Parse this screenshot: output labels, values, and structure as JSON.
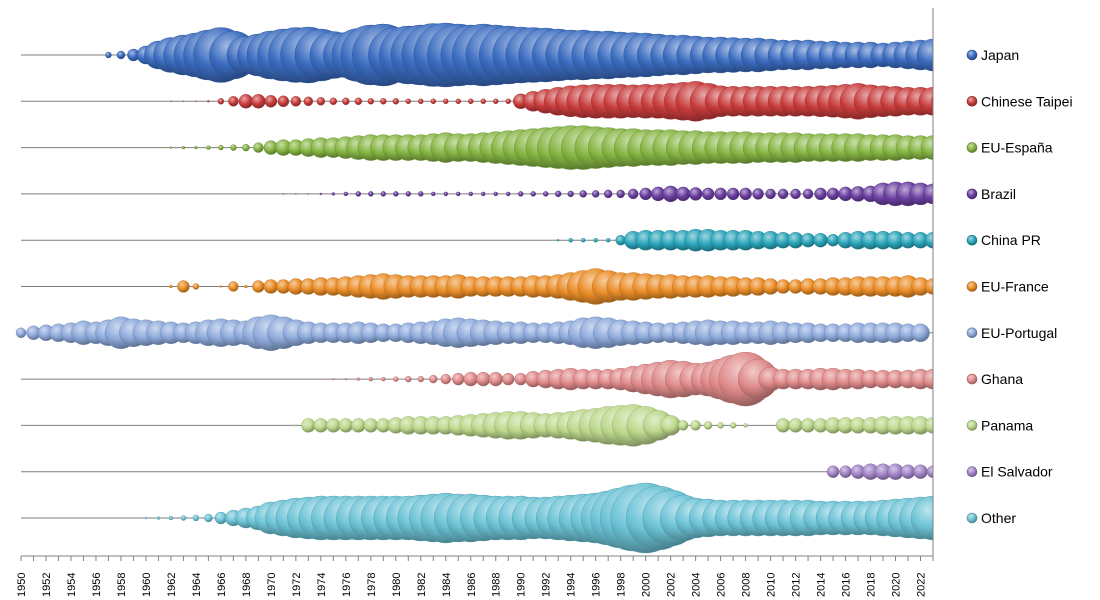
{
  "chart_data": {
    "type": "bubble-timeline",
    "title": "",
    "xlabel": "",
    "ylabel": "",
    "x_range": [
      1950,
      2023
    ],
    "x_tick_labels": [
      "1950",
      "1952",
      "1954",
      "1956",
      "1958",
      "1960",
      "1962",
      "1964",
      "1966",
      "1968",
      "1970",
      "1972",
      "1974",
      "1976",
      "1978",
      "1980",
      "1982",
      "1984",
      "1986",
      "1988",
      "1990",
      "1992",
      "1994",
      "1996",
      "1998",
      "2000",
      "2002",
      "2004",
      "2006",
      "2008",
      "2010",
      "2012",
      "2014",
      "2016",
      "2018",
      "2020",
      "2022"
    ],
    "legend_position": "right",
    "grid": false,
    "series": [
      {
        "name": "Japan",
        "color": "#3b6cc0",
        "start": 1957,
        "values": [
          6,
          8,
          12,
          18,
          28,
          35,
          40,
          44,
          50,
          55,
          48,
          38,
          42,
          48,
          52,
          55,
          56,
          52,
          47,
          45,
          53,
          60,
          62,
          55,
          58,
          60,
          63,
          64,
          62,
          60,
          62,
          60,
          58,
          56,
          55,
          54,
          52,
          50,
          50,
          48,
          48,
          46,
          45,
          44,
          42,
          40,
          40,
          38,
          36,
          36,
          35,
          34,
          34,
          32,
          30,
          30,
          30,
          28,
          28,
          26,
          26,
          26,
          24,
          26,
          28,
          30,
          32
        ]
      },
      {
        "name": "Chinese Taipei",
        "color": "#c83c3c",
        "start": 1962,
        "values": [
          1,
          1,
          1,
          2,
          6,
          10,
          14,
          14,
          12,
          11,
          10,
          9,
          8,
          7,
          7,
          7,
          6,
          6,
          6,
          5,
          5,
          5,
          5,
          5,
          5,
          5,
          5,
          5,
          15,
          20,
          24,
          28,
          31,
          33,
          34,
          34,
          34,
          33,
          34,
          34,
          36,
          38,
          40,
          36,
          31,
          30,
          30,
          30,
          30,
          30,
          30,
          30,
          31,
          32,
          34,
          36,
          33,
          31,
          30,
          28,
          28,
          28,
          28
        ]
      },
      {
        "name": "EU-España",
        "color": "#86b543",
        "start": 1962,
        "values": [
          2,
          3,
          3,
          4,
          5,
          6,
          7,
          10,
          14,
          16,
          16,
          18,
          20,
          20,
          22,
          24,
          26,
          26,
          26,
          26,
          26,
          28,
          30,
          28,
          28,
          30,
          32,
          34,
          36,
          38,
          40,
          42,
          44,
          44,
          42,
          40,
          38,
          38,
          36,
          36,
          36,
          34,
          34,
          32,
          32,
          32,
          32,
          30,
          30,
          30,
          30,
          28,
          28,
          28,
          28,
          28,
          26,
          26,
          26,
          24,
          24,
          24
        ]
      },
      {
        "name": "Brazil",
        "color": "#6b3fa0",
        "start": 1971,
        "values": [
          1,
          1,
          1,
          2,
          3,
          4,
          5,
          5,
          5,
          5,
          5,
          5,
          4,
          4,
          4,
          4,
          4,
          4,
          4,
          5,
          5,
          5,
          6,
          6,
          7,
          7,
          8,
          8,
          10,
          12,
          14,
          16,
          14,
          13,
          12,
          12,
          12,
          12,
          11,
          10,
          10,
          10,
          10,
          12,
          12,
          14,
          15,
          16,
          22,
          24,
          24,
          22,
          20,
          20,
          22,
          24
        ]
      },
      {
        "name": "China PR",
        "color": "#2aa4b9",
        "start": 1993,
        "values": [
          2,
          4,
          4,
          4,
          4,
          10,
          18,
          20,
          20,
          20,
          20,
          22,
          22,
          20,
          20,
          20,
          18,
          18,
          16,
          16,
          14,
          14,
          12,
          16,
          18,
          18,
          18,
          18,
          16,
          16,
          16,
          12,
          14,
          18
        ]
      },
      {
        "name": "EU-France",
        "color": "#ea8d28",
        "start": 1962,
        "values": [
          3,
          12,
          6,
          0,
          2,
          10,
          3,
          12,
          14,
          14,
          16,
          16,
          18,
          18,
          20,
          22,
          24,
          26,
          24,
          22,
          22,
          22,
          22,
          24,
          20,
          20,
          20,
          20,
          20,
          22,
          22,
          24,
          28,
          32,
          36,
          32,
          28,
          28,
          26,
          24,
          24,
          22,
          22,
          22,
          20,
          20,
          18,
          18,
          16,
          14,
          14,
          16,
          16,
          18,
          18,
          20,
          20,
          20,
          20,
          22,
          18,
          16,
          18,
          18
        ]
      },
      {
        "name": "EU-Portugal",
        "color": "#8eaadc",
        "start": 1950,
        "values": [
          10,
          14,
          16,
          18,
          20,
          24,
          22,
          26,
          32,
          28,
          26,
          24,
          22,
          20,
          22,
          26,
          28,
          26,
          24,
          32,
          36,
          32,
          26,
          22,
          20,
          20,
          20,
          22,
          20,
          18,
          18,
          20,
          22,
          24,
          28,
          30,
          28,
          26,
          24,
          22,
          22,
          20,
          20,
          22,
          24,
          30,
          32,
          30,
          26,
          24,
          22,
          20,
          20,
          22,
          24,
          26,
          24,
          24,
          22,
          22,
          24,
          22,
          20,
          20,
          18,
          18,
          18,
          20,
          20,
          20,
          20,
          18,
          18
        ]
      },
      {
        "name": "Ghana",
        "color": "#e08a8a",
        "start": 1973,
        "values": [
          1,
          1,
          2,
          2,
          3,
          4,
          4,
          5,
          6,
          6,
          8,
          10,
          12,
          14,
          14,
          14,
          12,
          12,
          16,
          18,
          20,
          22,
          20,
          20,
          20,
          22,
          26,
          30,
          34,
          38,
          36,
          32,
          34,
          40,
          48,
          54,
          40,
          24,
          20,
          20,
          20,
          22,
          22,
          20,
          20,
          18,
          18,
          18,
          18,
          20,
          20,
          22,
          22,
          22,
          20,
          20,
          20,
          20,
          20,
          20
        ]
      },
      {
        "name": "Panama",
        "color": "#bcd88c",
        "start": 1972,
        "values": [
          2,
          14,
          14,
          14,
          14,
          14,
          14,
          14,
          16,
          18,
          18,
          18,
          18,
          20,
          22,
          24,
          26,
          28,
          28,
          26,
          24,
          26,
          28,
          32,
          34,
          38,
          40,
          42,
          38,
          30,
          20,
          10,
          10,
          8,
          6,
          6,
          4,
          0,
          0,
          14,
          14,
          14,
          14,
          16,
          16,
          16,
          16,
          18,
          18,
          18,
          18,
          16,
          16,
          16,
          14,
          14,
          14,
          14,
          14,
          12,
          12
        ]
      },
      {
        "name": "El Salvador",
        "color": "#a385c8",
        "start": 2015,
        "values": [
          12,
          12,
          14,
          16,
          16,
          16,
          14,
          14,
          12
        ]
      },
      {
        "name": "Other",
        "color": "#6cc3d6",
        "start": 1960,
        "values": [
          2,
          3,
          4,
          5,
          6,
          8,
          12,
          16,
          20,
          24,
          32,
          36,
          40,
          42,
          44,
          44,
          44,
          44,
          44,
          44,
          44,
          44,
          46,
          48,
          50,
          48,
          48,
          46,
          44,
          44,
          44,
          42,
          42,
          44,
          46,
          48,
          50,
          54,
          60,
          66,
          70,
          64,
          56,
          46,
          40,
          38,
          36,
          36,
          36,
          36,
          36,
          36,
          36,
          36,
          34,
          34,
          34,
          34,
          34,
          36,
          38,
          40,
          42,
          44
        ]
      }
    ]
  }
}
